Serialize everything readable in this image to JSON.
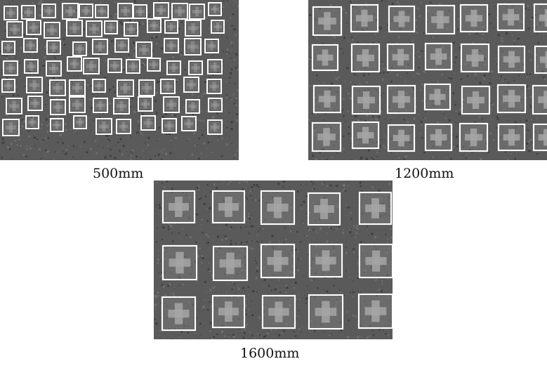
{
  "panels": [
    {
      "id": "p500",
      "caption": "500mm",
      "target_count": 74
    },
    {
      "id": "p1200",
      "caption": "1200mm",
      "target_count": 28
    },
    {
      "id": "p1600",
      "caption": "1600mm",
      "target_count": 15
    }
  ],
  "colors": {
    "background": "#5a5a5a",
    "noise_dark": "#3e3e3e",
    "noise_light": "#6e6e6e",
    "target_fill": "#7a7a7a",
    "cross": "#a6a6a6",
    "box": "#ffffff"
  }
}
